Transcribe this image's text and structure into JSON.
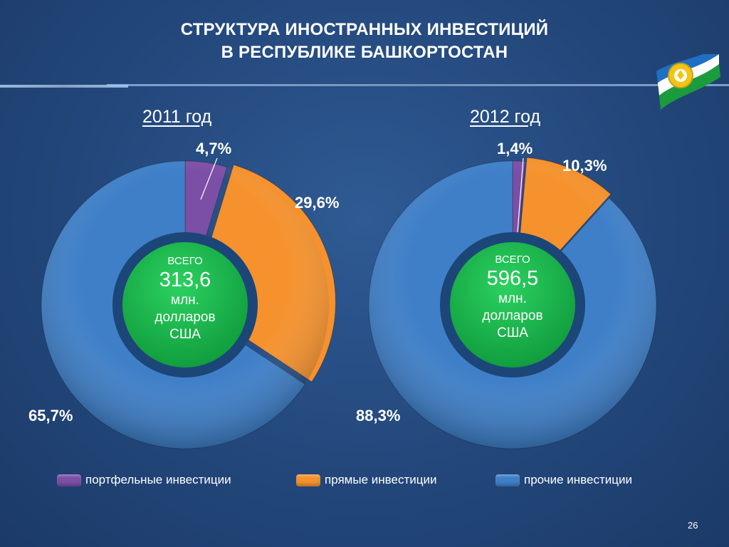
{
  "title": {
    "line1": "СТРУКТУРА ИНОСТРАННЫХ ИНВЕСТИЦИЙ",
    "line2": "В РЕСПУБЛИКЕ БАШКОРТОСТАН"
  },
  "colors": {
    "portfolio": "#7b4fa6",
    "direct": "#f5922e",
    "other": "#3e7fc8",
    "center": "#18b34b",
    "ring_bg": "#1c4678"
  },
  "center_labels": {
    "total": "ВСЕГО",
    "unit_line1": "млн.",
    "unit_line2": "долларов",
    "unit_line3": "США"
  },
  "chart_data": [
    {
      "type": "pie",
      "title": "2011 год",
      "total": "313,6",
      "slices": [
        {
          "name": "портфельные инвестиции",
          "value": 4.7,
          "label": "4,7%"
        },
        {
          "name": "прямые инвестиции",
          "value": 29.6,
          "label": "29,6%"
        },
        {
          "name": "прочие инвестиции",
          "value": 65.7,
          "label": "65,7%"
        }
      ]
    },
    {
      "type": "pie",
      "title": "2012 год",
      "total": "596,5",
      "slices": [
        {
          "name": "портфельные инвестиции",
          "value": 1.4,
          "label": "1,4%"
        },
        {
          "name": "прямые инвестиции",
          "value": 10.3,
          "label": "10,3%"
        },
        {
          "name": "прочие инвестиции",
          "value": 88.3,
          "label": "88,3%"
        }
      ]
    }
  ],
  "legend": [
    {
      "label": "портфельные инвестиции",
      "color": "#7b4fa6"
    },
    {
      "label": "прямые инвестиции",
      "color": "#f5922e"
    },
    {
      "label": "прочие инвестиции",
      "color": "#3e7fc8"
    }
  ],
  "page_number": "26"
}
